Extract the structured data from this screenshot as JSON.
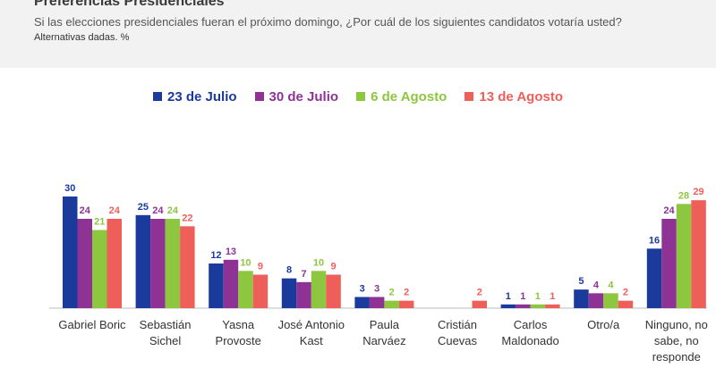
{
  "header": {
    "title": "Preferencias Presidenciales",
    "subtitle": "Si las elecciones presidenciales fueran el próximo domingo, ¿Por cuál de los siguientes candidatos votaría usted?",
    "note": "Alternativas dadas. %"
  },
  "colors": {
    "series": [
      "#1a3a9c",
      "#8e3296",
      "#8dc63f",
      "#ef5f5a"
    ],
    "header_bg": "#f2f2f3",
    "axis": "#bbbbbb",
    "category_text": "#333333"
  },
  "chart_data": {
    "type": "bar",
    "categories": [
      [
        "Gabriel Boric"
      ],
      [
        "Sebastián",
        "Sichel"
      ],
      [
        "Yasna",
        "Provoste"
      ],
      [
        "José Antonio",
        "Kast"
      ],
      [
        "Paula",
        "Narváez"
      ],
      [
        "Cristián",
        "Cuevas"
      ],
      [
        "Carlos",
        "Maldonado"
      ],
      [
        "Otro/a"
      ],
      [
        "Ninguno, no",
        "sabe, no",
        "responde"
      ]
    ],
    "series": [
      {
        "name": "23 de Julio",
        "values": [
          30,
          25,
          12,
          8,
          3,
          null,
          1,
          5,
          16
        ]
      },
      {
        "name": "30 de Julio",
        "values": [
          24,
          24,
          13,
          7,
          3,
          null,
          1,
          4,
          24
        ]
      },
      {
        "name": "6 de Agosto",
        "values": [
          21,
          24,
          10,
          10,
          2,
          null,
          1,
          4,
          28
        ]
      },
      {
        "name": "13 de Agosto",
        "values": [
          24,
          22,
          9,
          9,
          2,
          2,
          1,
          2,
          29
        ]
      }
    ],
    "ylim": [
      0,
      30
    ],
    "grid": false,
    "legend": "top-center",
    "data_labels": true
  }
}
